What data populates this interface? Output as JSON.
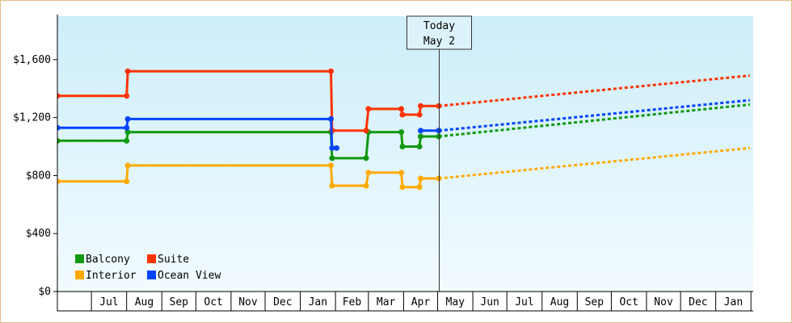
{
  "chart_data": {
    "type": "line",
    "title": "",
    "xlabel": "",
    "ylabel": "",
    "ylim": [
      0,
      1900
    ],
    "y_ticks": [
      0,
      400,
      800,
      1200,
      1600
    ],
    "y_tick_labels": [
      "$0",
      "$400",
      "$800",
      "$1,200",
      "$1,600"
    ],
    "x_tick_labels": [
      "Jul",
      "Aug",
      "Sep",
      "Oct",
      "Nov",
      "Dec",
      "Jan",
      "Feb",
      "Mar",
      "Apr",
      "May",
      "Jun",
      "Jul",
      "Aug",
      "Sep",
      "Oct",
      "Nov",
      "Dec",
      "Jan"
    ],
    "grid": false,
    "legend_position": "bottom-left",
    "background_gradient": [
      "#cdeefa",
      "#f2fbfe"
    ],
    "today_marker": {
      "line1": "Today",
      "line2": "May 2",
      "x": "2024-05-02"
    },
    "series": [
      {
        "name": "Balcony",
        "color": "#119911",
        "history": [
          [
            "2023-06-01",
            1040
          ],
          [
            "2023-08-01",
            1040
          ],
          [
            "2023-08-02",
            1100
          ],
          [
            "2024-01-28",
            1100
          ],
          [
            "2024-01-29",
            920
          ],
          [
            "2024-02-28",
            920
          ],
          [
            "2024-03-01",
            1100
          ],
          [
            "2024-03-30",
            1100
          ],
          [
            "2024-03-31",
            1000
          ],
          [
            "2024-04-15",
            1000
          ],
          [
            "2024-04-16",
            1070
          ],
          [
            "2024-05-02",
            1070
          ]
        ],
        "forecast": [
          [
            "2024-05-02",
            1070
          ],
          [
            "2025-01-31",
            1290
          ]
        ]
      },
      {
        "name": "Suite",
        "color": "#ff3300",
        "history": [
          [
            "2023-06-01",
            1350
          ],
          [
            "2023-08-01",
            1350
          ],
          [
            "2023-08-02",
            1520
          ],
          [
            "2024-01-28",
            1520
          ],
          [
            "2024-01-29",
            1110
          ],
          [
            "2024-02-28",
            1110
          ],
          [
            "2024-03-01",
            1260
          ],
          [
            "2024-03-30",
            1260
          ],
          [
            "2024-03-31",
            1220
          ],
          [
            "2024-04-15",
            1220
          ],
          [
            "2024-04-16",
            1280
          ],
          [
            "2024-05-02",
            1280
          ]
        ],
        "forecast": [
          [
            "2024-05-02",
            1280
          ],
          [
            "2025-01-31",
            1490
          ]
        ]
      },
      {
        "name": "Interior",
        "color": "#ffaa00",
        "history": [
          [
            "2023-06-01",
            760
          ],
          [
            "2023-08-01",
            760
          ],
          [
            "2023-08-02",
            870
          ],
          [
            "2024-01-28",
            870
          ],
          [
            "2024-01-29",
            730
          ],
          [
            "2024-02-28",
            730
          ],
          [
            "2024-03-01",
            820
          ],
          [
            "2024-03-30",
            820
          ],
          [
            "2024-03-31",
            720
          ],
          [
            "2024-04-15",
            720
          ],
          [
            "2024-04-16",
            780
          ],
          [
            "2024-05-02",
            780
          ]
        ],
        "forecast": [
          [
            "2024-05-02",
            780
          ],
          [
            "2025-01-31",
            990
          ]
        ]
      },
      {
        "name": "Ocean View",
        "color": "#0044ff",
        "history_segments": [
          [
            [
              "2023-06-01",
              1130
            ],
            [
              "2023-08-01",
              1130
            ],
            [
              "2023-08-02",
              1190
            ],
            [
              "2024-01-28",
              1190
            ],
            [
              "2024-01-29",
              990
            ],
            [
              "2024-02-02",
              990
            ]
          ],
          [
            [
              "2024-04-16",
              1110
            ],
            [
              "2024-05-02",
              1110
            ]
          ]
        ],
        "forecast": [
          [
            "2024-05-02",
            1110
          ],
          [
            "2025-01-31",
            1320
          ]
        ]
      }
    ]
  }
}
